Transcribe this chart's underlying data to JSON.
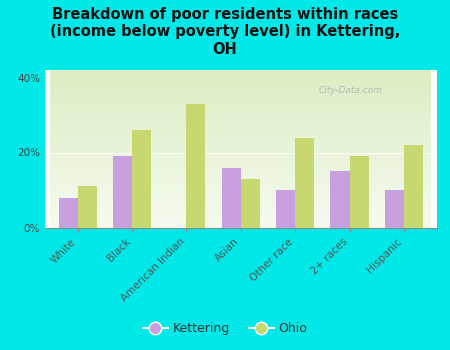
{
  "title": "Breakdown of poor residents within races\n(income below poverty level) in Kettering,\nOH",
  "categories": [
    "White",
    "Black",
    "American Indian",
    "Asian",
    "Other race",
    "2+ races",
    "Hispanic"
  ],
  "kettering_values": [
    8,
    19,
    0,
    16,
    10,
    15,
    10
  ],
  "ohio_values": [
    11,
    26,
    33,
    13,
    24,
    19,
    22
  ],
  "kettering_color": "#c8a0e0",
  "ohio_color": "#c8d870",
  "background_color": "#00e8e8",
  "ylim": [
    0,
    42
  ],
  "yticks": [
    0,
    20,
    40
  ],
  "ytick_labels": [
    "0%",
    "20%",
    "40%"
  ],
  "watermark": "City-Data.com",
  "legend_kettering": "Kettering",
  "legend_ohio": "Ohio",
  "title_fontsize": 10.5,
  "tick_fontsize": 7.5,
  "legend_fontsize": 9
}
